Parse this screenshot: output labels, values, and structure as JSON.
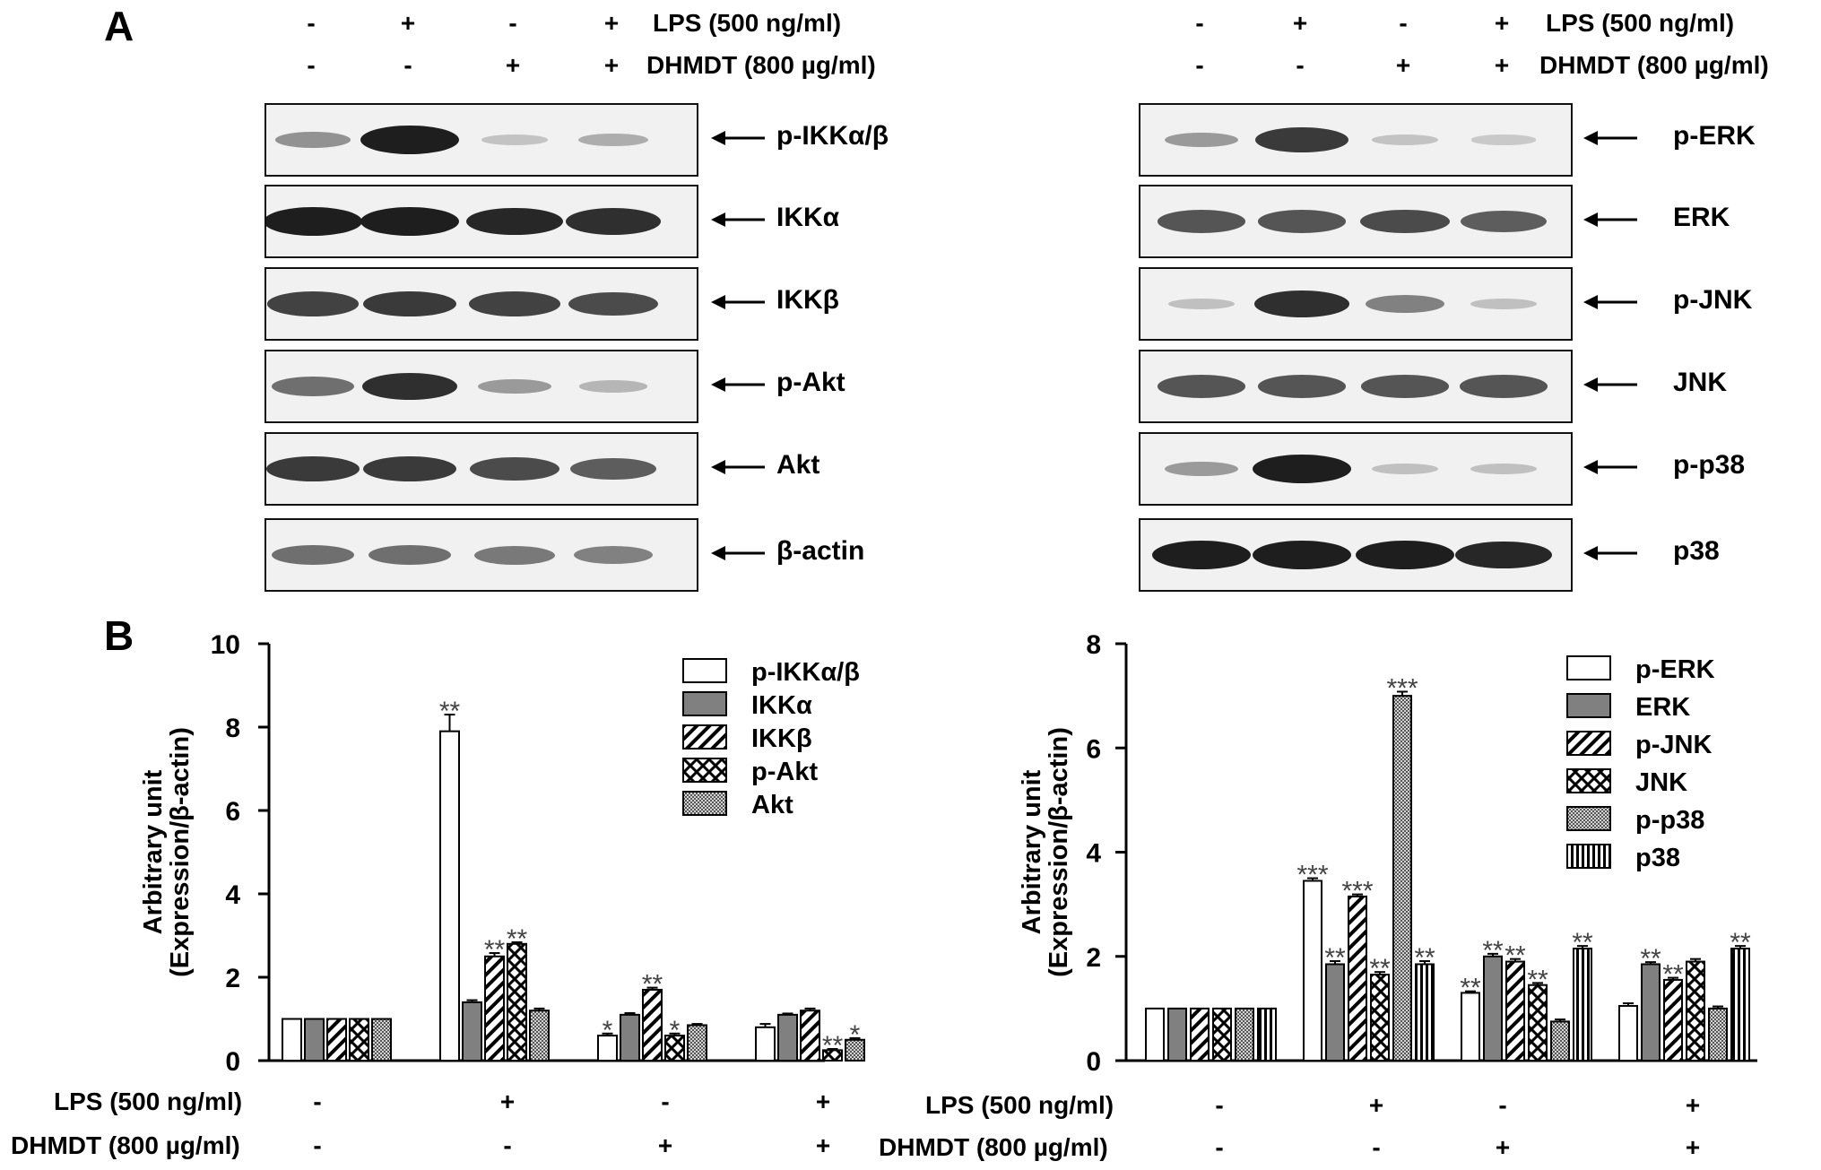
{
  "panel_a": {
    "letter": "A",
    "left": {
      "lps_label": "LPS (500 ng/ml)",
      "dhmdt_label": "DHMDT (800 µg/ml)",
      "lps_signs": [
        "-",
        "+",
        "-",
        "+"
      ],
      "dhmdt_signs": [
        "-",
        "-",
        "+",
        "+"
      ],
      "blots": [
        {
          "label": "p-IKKα/β",
          "bands": [
            0.35,
            1.0,
            0.08,
            0.2
          ]
        },
        {
          "label": "IKKα",
          "bands": [
            1.0,
            1.0,
            0.95,
            0.9
          ]
        },
        {
          "label": "IKKβ",
          "bands": [
            0.8,
            0.85,
            0.8,
            0.75
          ]
        },
        {
          "label": "p-Akt",
          "bands": [
            0.55,
            0.9,
            0.3,
            0.15
          ]
        },
        {
          "label": "Akt",
          "bands": [
            0.85,
            0.85,
            0.75,
            0.65
          ]
        },
        {
          "label": "β-actin",
          "bands": [
            0.55,
            0.55,
            0.5,
            0.45
          ]
        }
      ]
    },
    "right": {
      "lps_label": "LPS (500 ng/ml)",
      "dhmdt_label": "DHMDT (800 µg/ml)",
      "lps_signs": [
        "-",
        "+",
        "-",
        "+"
      ],
      "dhmdt_signs": [
        "-",
        "-",
        "+",
        "+"
      ],
      "blots": [
        {
          "label": "p-ERK",
          "bands": [
            0.3,
            0.85,
            0.08,
            0.05
          ]
        },
        {
          "label": "ERK",
          "bands": [
            0.7,
            0.7,
            0.75,
            0.65
          ]
        },
        {
          "label": "p-JNK",
          "bands": [
            0.1,
            0.9,
            0.45,
            0.1
          ]
        },
        {
          "label": "JNK",
          "bands": [
            0.7,
            0.7,
            0.7,
            0.7
          ]
        },
        {
          "label": "p-p38",
          "bands": [
            0.3,
            1.0,
            0.1,
            0.1
          ]
        },
        {
          "label": "p38",
          "bands": [
            1.0,
            1.0,
            1.0,
            0.95
          ]
        }
      ]
    }
  },
  "panel_b": {
    "letter": "B",
    "x_row_labels": [
      "LPS (500 ng/ml)",
      "DHMDT (800 µg/ml)"
    ]
  },
  "chart_data": [
    {
      "type": "bar",
      "ylabel": "Arbitrary unit (Expression/β-actin)",
      "ylabel_lines": [
        "Arbitrary unit",
        "(Expression/β-actin)"
      ],
      "ylim": [
        0,
        10
      ],
      "yticks": [
        0,
        2,
        4,
        6,
        8,
        10
      ],
      "legend_position": "top-right",
      "groups": [
        {
          "lps": "-",
          "dhmdt": "-"
        },
        {
          "lps": "+",
          "dhmdt": "-"
        },
        {
          "lps": "-",
          "dhmdt": "+"
        },
        {
          "lps": "+",
          "dhmdt": "+"
        }
      ],
      "series": [
        {
          "name": "p-IKKα/β",
          "fill": "white",
          "values": [
            1.0,
            7.9,
            0.6,
            0.8
          ],
          "errors": [
            0,
            0.4,
            0.05,
            0.08
          ],
          "significance": [
            "",
            "**",
            "*",
            ""
          ]
        },
        {
          "name": "IKKα",
          "fill": "gray",
          "values": [
            1.0,
            1.4,
            1.1,
            1.1
          ],
          "errors": [
            0,
            0.05,
            0.04,
            0.03
          ],
          "significance": [
            "",
            "",
            "",
            ""
          ]
        },
        {
          "name": "IKKβ",
          "fill": "diagonal",
          "values": [
            1.0,
            2.5,
            1.7,
            1.2
          ],
          "errors": [
            0,
            0.08,
            0.05,
            0.05
          ],
          "significance": [
            "",
            "**",
            "**",
            ""
          ]
        },
        {
          "name": "p-Akt",
          "fill": "cross",
          "values": [
            1.0,
            2.8,
            0.6,
            0.25
          ],
          "errors": [
            0,
            0.04,
            0.05,
            0.03
          ],
          "significance": [
            "",
            "**",
            "*",
            "**"
          ]
        },
        {
          "name": "Akt",
          "fill": "dots",
          "values": [
            1.0,
            1.2,
            0.85,
            0.5
          ],
          "errors": [
            0,
            0.05,
            0.03,
            0.04
          ],
          "significance": [
            "",
            "",
            "",
            "*"
          ]
        }
      ]
    },
    {
      "type": "bar",
      "ylabel": "Arbitrary unit (Expression/β-actin)",
      "ylabel_lines": [
        "Arbitrary unit",
        "(Expression/β-actin)"
      ],
      "ylim": [
        0,
        8
      ],
      "yticks": [
        0,
        2,
        4,
        6,
        8
      ],
      "legend_position": "top-right",
      "groups": [
        {
          "lps": "-",
          "dhmdt": "-"
        },
        {
          "lps": "+",
          "dhmdt": "-"
        },
        {
          "lps": "-",
          "dhmdt": "+"
        },
        {
          "lps": "+",
          "dhmdt": "+"
        }
      ],
      "series": [
        {
          "name": "p-ERK",
          "fill": "white",
          "values": [
            1.0,
            3.45,
            1.3,
            1.05
          ],
          "errors": [
            0,
            0.05,
            0.03,
            0.05
          ],
          "significance": [
            "",
            "***",
            "**",
            ""
          ]
        },
        {
          "name": "ERK",
          "fill": "gray",
          "values": [
            1.0,
            1.85,
            2.0,
            1.85
          ],
          "errors": [
            0,
            0.06,
            0.05,
            0.04
          ],
          "significance": [
            "",
            "**",
            "**",
            "**"
          ]
        },
        {
          "name": "p-JNK",
          "fill": "diagonal",
          "values": [
            1.0,
            3.15,
            1.9,
            1.55
          ],
          "errors": [
            0,
            0.04,
            0.05,
            0.04
          ],
          "significance": [
            "",
            "***",
            "**",
            "**"
          ]
        },
        {
          "name": "JNK",
          "fill": "cross",
          "values": [
            1.0,
            1.65,
            1.45,
            1.9
          ],
          "errors": [
            0,
            0.05,
            0.04,
            0.05
          ],
          "significance": [
            "",
            "**",
            "**",
            ""
          ]
        },
        {
          "name": "p-p38",
          "fill": "dots",
          "values": [
            1.0,
            7.0,
            0.75,
            1.0
          ],
          "errors": [
            0,
            0.08,
            0.04,
            0.04
          ],
          "significance": [
            "",
            "***",
            "",
            ""
          ]
        },
        {
          "name": "p38",
          "fill": "vstripe",
          "values": [
            1.0,
            1.85,
            2.15,
            2.15
          ],
          "errors": [
            0,
            0.06,
            0.05,
            0.05
          ],
          "significance": [
            "",
            "**",
            "**",
            "**"
          ]
        }
      ]
    }
  ]
}
